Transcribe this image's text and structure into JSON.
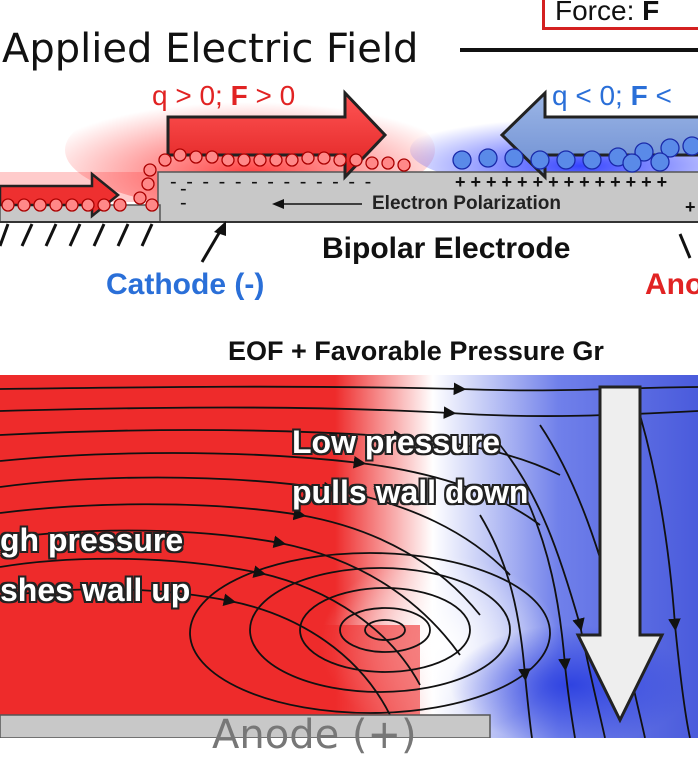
{
  "header": {
    "title": "Applied Electric Field",
    "force_prefix": "Force: ",
    "force_symbol": "F"
  },
  "labels": {
    "positive": {
      "pre": "q > 0; ",
      "bold": "F",
      "post": " > 0"
    },
    "negative": {
      "pre": "q < 0; ",
      "bold": "F",
      "post": " <"
    },
    "electron_polarization": "Electron Polarization",
    "bipolar_electrode": "Bipolar Electrode",
    "cathode": "Cathode (-)",
    "anode_top": "Ano",
    "eof": "EOF + Favorable Pressure Gr",
    "low_pressure_line1": "Low pressure",
    "low_pressure_line2": "pulls wall down",
    "high_pressure_line1": "gh pressure",
    "high_pressure_line2": "shes wall up",
    "anode_bottom": "Anode (+)"
  },
  "symbols": {
    "plus": "+",
    "minus": "-",
    "plus_row": "+ + + + + + + + + + + + + +",
    "minus_row": "- - - - - - - - - - - - -"
  },
  "colors": {
    "red": "#e12323",
    "blue": "#2a6fd8",
    "electrode_gray": "#c8c8c8",
    "field_red": "#ee2b2b",
    "field_blue": "#4a5bdc"
  }
}
